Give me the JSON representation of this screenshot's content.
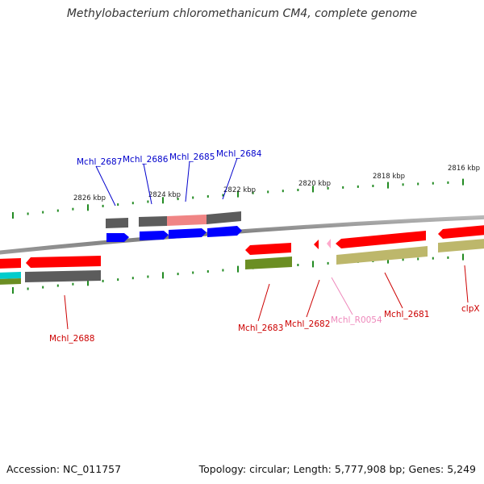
{
  "title": "Methylobacterium chloromethanicum CM4, complete genome",
  "footer": {
    "accession": "Accession: NC_011757",
    "summary": "Topology: circular; Length: 5,777,908 bp; Genes: 5,249"
  },
  "ruler": {
    "tick_labels": [
      "2826 kbp",
      "2824 kbp",
      "2822 kbp",
      "2820 kbp",
      "2818 kbp",
      "2816 kbp"
    ]
  },
  "genes_upper": [
    {
      "name": "Mchl_2687",
      "color": "#0000cc"
    },
    {
      "name": "Mchl_2686",
      "color": "#0000cc"
    },
    {
      "name": "Mchl_2685",
      "color": "#0000cc"
    },
    {
      "name": "Mchl_2684",
      "color": "#0000cc"
    }
  ],
  "genes_lower": [
    {
      "name": "Mchl_2688",
      "color": "#cc0000"
    },
    {
      "name": "Mchl_2683",
      "color": "#cc0000"
    },
    {
      "name": "Mchl_2682",
      "color": "#cc0000"
    },
    {
      "name": "Mchl_R0054",
      "color": "#ee88bb"
    },
    {
      "name": "Mchl_2681",
      "color": "#cc0000"
    },
    {
      "name": "clpX",
      "color": "#cc0000"
    }
  ],
  "colors": {
    "backbone": "#808080",
    "cds_forward": "#0000ff",
    "cds_reverse": "#ff0000",
    "trna": "#ffaacc",
    "cog_gray": "#5a5a5a",
    "cog_pink": "#f08080",
    "cog_green": "#6b8e23",
    "cog_khaki": "#bdb76b",
    "cog_cyan": "#00cccc",
    "tick": "#228b22"
  }
}
